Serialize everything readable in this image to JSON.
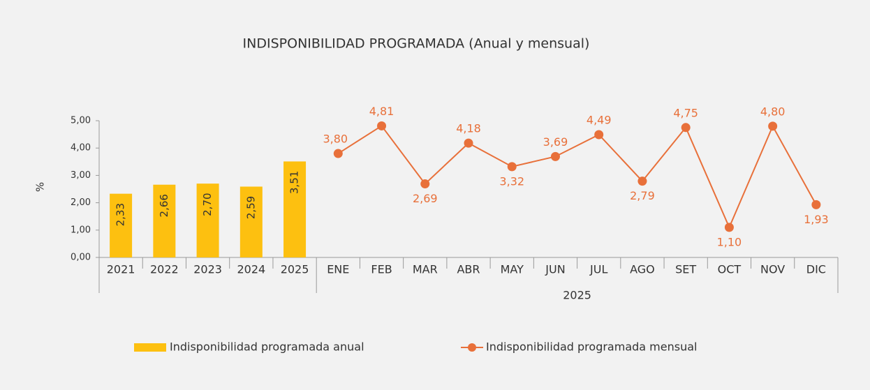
{
  "chart_data": {
    "type": "combo",
    "title": "INDISPONIBILIDAD PROGRAMADA (Anual y mensual)",
    "y_label": "%",
    "categories": [
      "2021",
      "2022",
      "2023",
      "2024",
      "2025",
      "ENE",
      "FEB",
      "MAR",
      "ABR",
      "MAY",
      "JUN",
      "JUL",
      "AGO",
      "SET",
      "OCT",
      "NOV",
      "DIC"
    ],
    "x_group_label": "2025",
    "ylim": [
      0,
      5
    ],
    "yticks": [
      {
        "value": 0,
        "label": "0,00"
      },
      {
        "value": 1,
        "label": "1,00"
      },
      {
        "value": 2,
        "label": "2,00"
      },
      {
        "value": 3,
        "label": "3,00"
      },
      {
        "value": 4,
        "label": "4,00"
      },
      {
        "value": 5,
        "label": "5,00"
      }
    ],
    "series": [
      {
        "name": "Indisponibilidad programada anual",
        "type": "bar",
        "color": "#fdc010",
        "values": [
          2.33,
          2.66,
          2.7,
          2.59,
          3.51,
          null,
          null,
          null,
          null,
          null,
          null,
          null,
          null,
          null,
          null,
          null,
          null
        ],
        "value_labels": [
          "2,33",
          "2,66",
          "2,70",
          "2,59",
          "3,51",
          null,
          null,
          null,
          null,
          null,
          null,
          null,
          null,
          null,
          null,
          null,
          null
        ]
      },
      {
        "name": "Indisponibilidad programada mensual",
        "type": "line",
        "color": "#e8703a",
        "values": [
          null,
          null,
          null,
          null,
          null,
          3.8,
          4.81,
          2.69,
          4.18,
          3.32,
          3.69,
          4.49,
          2.79,
          4.75,
          1.1,
          4.8,
          1.93
        ],
        "value_labels": [
          null,
          null,
          null,
          null,
          null,
          "3,80",
          "4,81",
          "2,69",
          "4,18",
          "3,32",
          "3,69",
          "4,49",
          "2,79",
          "4,75",
          "1,10",
          "4,80",
          "1,93"
        ]
      }
    ]
  }
}
